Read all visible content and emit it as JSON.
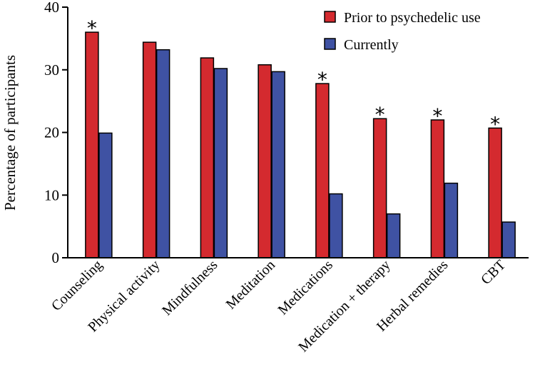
{
  "chart_data": {
    "type": "bar",
    "title": "",
    "xlabel": "",
    "ylabel": "Percentage of participants",
    "ylim": [
      0,
      40
    ],
    "yticks": [
      "0",
      "10",
      "20",
      "30",
      "40"
    ],
    "grid": false,
    "legend_position": "top-right",
    "categories": [
      "Counseling",
      "Physical activity",
      "Mindfulness",
      "Meditation",
      "Medications",
      "Medication + therapy",
      "Herbal remedies",
      "CBT"
    ],
    "series": [
      {
        "name": "Prior to psychedelic use",
        "color": "#d42a2f",
        "values": [
          36.0,
          34.4,
          31.9,
          30.8,
          27.8,
          22.2,
          22.0,
          20.7
        ]
      },
      {
        "name": "Currently",
        "color": "#3f52a3",
        "values": [
          19.9,
          33.2,
          30.2,
          29.7,
          10.2,
          7.0,
          11.9,
          5.7
        ]
      }
    ],
    "significance_marker": "*",
    "significant": [
      true,
      false,
      false,
      false,
      true,
      true,
      true,
      true
    ]
  }
}
